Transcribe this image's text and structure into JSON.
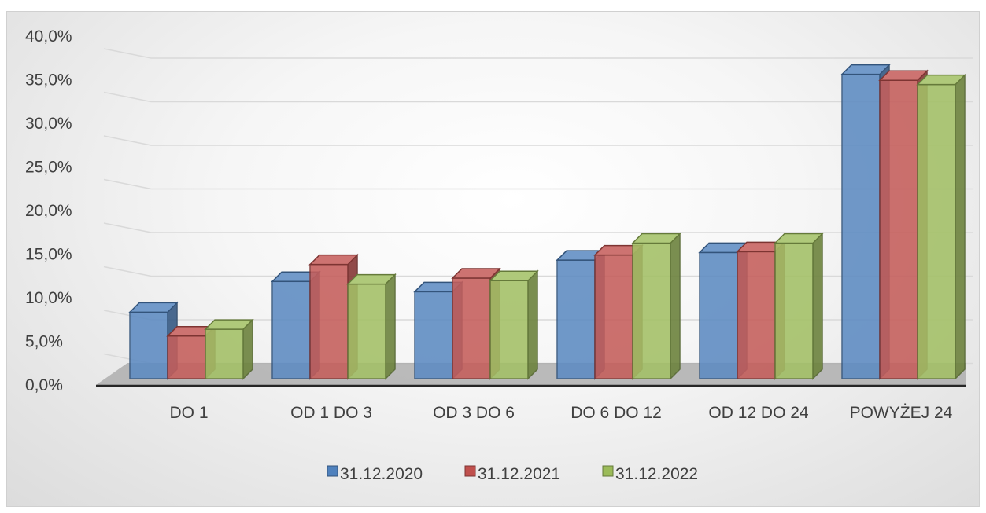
{
  "chart_data": {
    "type": "bar",
    "style": "3d-clustered-column",
    "categories": [
      "DO 1",
      "OD 1 DO 3",
      "OD 3 DO 6",
      "DO 6 DO 12",
      "OD 12 DO 24",
      "POWYŻEJ 24"
    ],
    "series": [
      {
        "name": "31.12.2020",
        "color": "#4f81bd",
        "values": [
          7.8,
          11.4,
          10.2,
          13.9,
          14.8,
          35.7
        ]
      },
      {
        "name": "31.12.2021",
        "color": "#c0504d",
        "values": [
          5.0,
          13.4,
          11.8,
          14.5,
          14.9,
          35.0
        ]
      },
      {
        "name": "31.12.2022",
        "color": "#9bbb59",
        "values": [
          5.8,
          11.1,
          11.5,
          15.9,
          15.9,
          34.5
        ]
      }
    ],
    "y_ticks": [
      "0,0%",
      "5,0%",
      "10,0%",
      "15,0%",
      "20,0%",
      "25,0%",
      "30,0%",
      "35,0%",
      "40,0%"
    ],
    "ylim": [
      0,
      40
    ],
    "y_unit": "%",
    "grid": true,
    "legend_position": "bottom"
  }
}
